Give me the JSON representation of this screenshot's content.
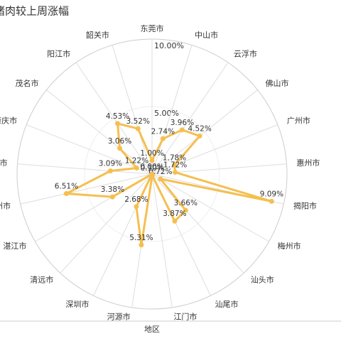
{
  "chart_data": {
    "type": "radar",
    "title": "猪肉较上周涨幅",
    "x_label": "地区",
    "categories": [
      "东莞市",
      "中山市",
      "云浮市",
      "佛山市",
      "广州市",
      "惠州市",
      "揭阳市",
      "梅州市",
      "汕头市",
      "汕尾市",
      "江门市",
      "河源市",
      "深圳市",
      "清远市",
      "湛江市",
      "潮州市",
      "珠海市",
      "肇庆市",
      "茂名市",
      "阳江市",
      "韶关市"
    ],
    "values": [
      1.0,
      2.74,
      3.96,
      4.52,
      1.78,
      1.72,
      9.09,
      0.72,
      3.66,
      3.87,
      0.1,
      5.31,
      2.68,
      0.0,
      3.38,
      6.51,
      3.09,
      1.22,
      3.06,
      4.53,
      3.52
    ],
    "value_labels": [
      "1.00%",
      "2.74%",
      "3.96%",
      "4.52%",
      "1.78%",
      "1.72%",
      "9.09%",
      "0.72%",
      "3.66%",
      "3.87%",
      "0.10%",
      "5.31%",
      "2.68%",
      "0.00%",
      "3.38%",
      "6.51%",
      "3.09%",
      "1.22%",
      "3.06%",
      "4.53%",
      "3.52%"
    ],
    "color": "#f5bf4f",
    "rlim": [
      0,
      10
    ],
    "rticks": [
      {
        "value": 5,
        "label": "5.00%"
      },
      {
        "value": 10,
        "label": "10.00%"
      }
    ]
  }
}
